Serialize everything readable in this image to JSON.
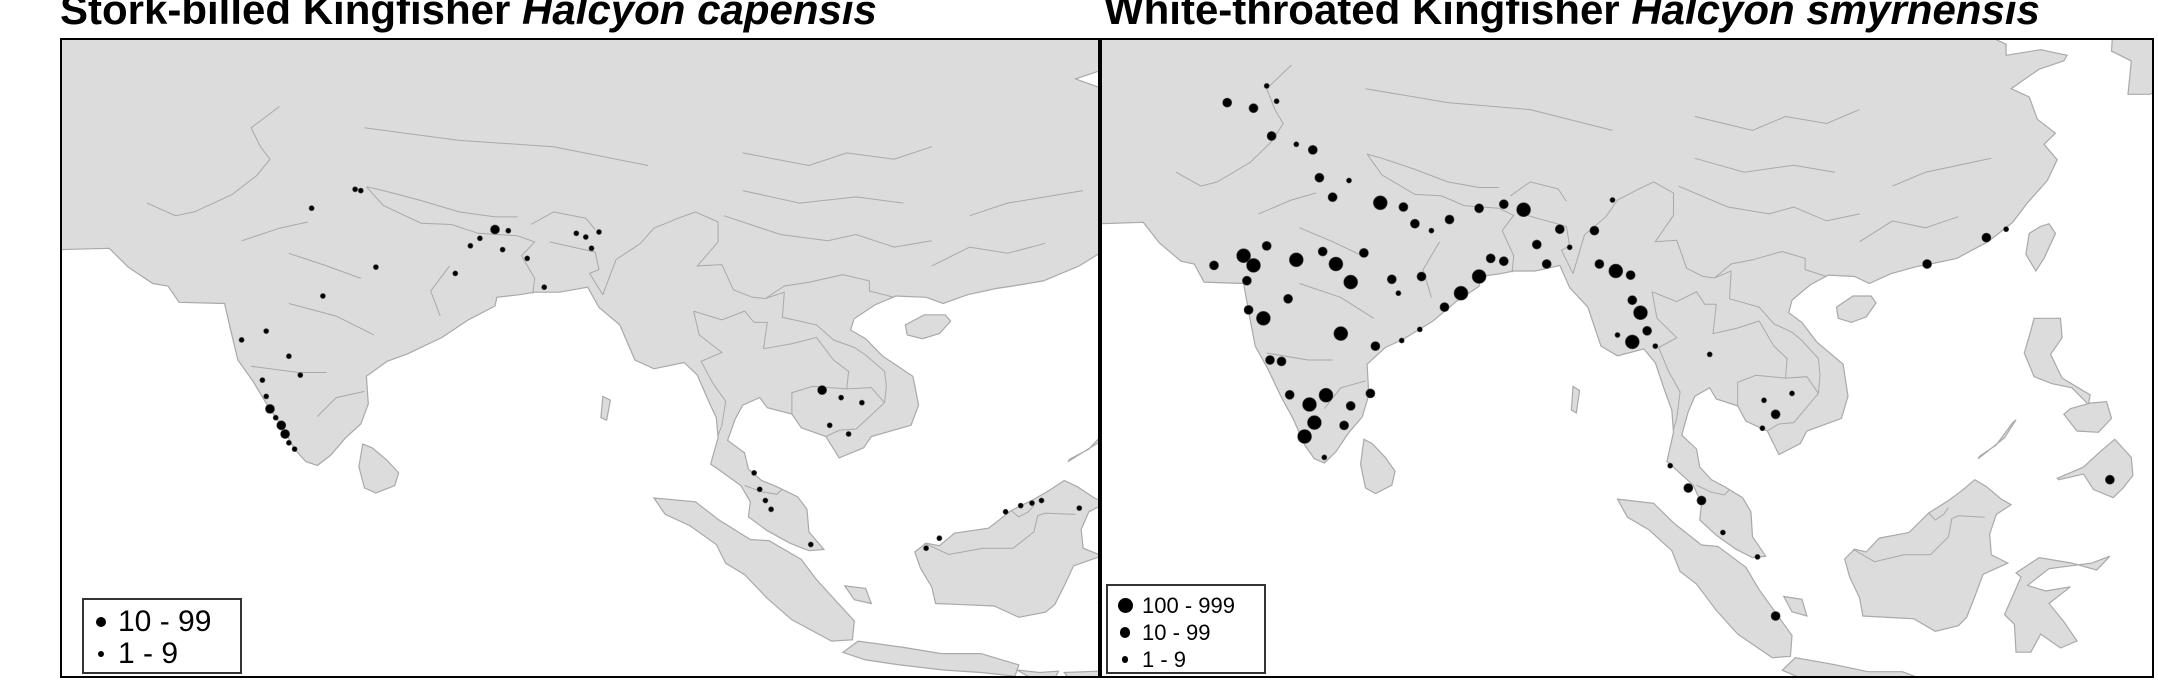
{
  "titles": {
    "left_common": "Stork-billed Kingfisher",
    "left_scientific": "Halcyon capensis",
    "right_common": "White-throated Kingfisher",
    "right_scientific": "Halcyon smyrnensis"
  },
  "colors": {
    "land": "#dcdcdc",
    "sea": "#ffffff",
    "border": "#a9a9a9",
    "dot": "#000000"
  },
  "maps": {
    "left": {
      "name": "stork-billed-kingfisher-map",
      "legend": [
        {
          "label": "10 - 99",
          "class": "medium"
        },
        {
          "label": "1 - 9",
          "class": "small"
        }
      ],
      "records": [
        {
          "lon": 77.2,
          "lat": 28.6,
          "class": "small"
        },
        {
          "lon": 80.6,
          "lat": 23.9,
          "class": "small"
        },
        {
          "lon": 79.5,
          "lat": 30.1,
          "class": "small"
        },
        {
          "lon": 79.8,
          "lat": 30.0,
          "class": "small"
        },
        {
          "lon": 73.5,
          "lat": 18.1,
          "class": "small"
        },
        {
          "lon": 74.6,
          "lat": 14.9,
          "class": "small"
        },
        {
          "lon": 74.8,
          "lat": 13.6,
          "class": "small"
        },
        {
          "lon": 75.0,
          "lat": 12.6,
          "class": "medium"
        },
        {
          "lon": 75.3,
          "lat": 11.9,
          "class": "small"
        },
        {
          "lon": 75.6,
          "lat": 11.3,
          "class": "medium"
        },
        {
          "lon": 75.8,
          "lat": 10.6,
          "class": "medium"
        },
        {
          "lon": 76.0,
          "lat": 9.9,
          "class": "small"
        },
        {
          "lon": 76.3,
          "lat": 9.4,
          "class": "small"
        },
        {
          "lon": 76.0,
          "lat": 16.8,
          "class": "small"
        },
        {
          "lon": 76.6,
          "lat": 15.3,
          "class": "small"
        },
        {
          "lon": 74.8,
          "lat": 18.8,
          "class": "small"
        },
        {
          "lon": 77.8,
          "lat": 21.6,
          "class": "small"
        },
        {
          "lon": 86.9,
          "lat": 26.9,
          "class": "medium"
        },
        {
          "lon": 86.1,
          "lat": 26.2,
          "class": "small"
        },
        {
          "lon": 87.6,
          "lat": 26.8,
          "class": "small"
        },
        {
          "lon": 85.6,
          "lat": 25.6,
          "class": "small"
        },
        {
          "lon": 87.3,
          "lat": 25.3,
          "class": "small"
        },
        {
          "lon": 88.6,
          "lat": 24.6,
          "class": "small"
        },
        {
          "lon": 84.8,
          "lat": 23.4,
          "class": "small"
        },
        {
          "lon": 91.2,
          "lat": 26.6,
          "class": "small"
        },
        {
          "lon": 91.7,
          "lat": 26.3,
          "class": "small"
        },
        {
          "lon": 92.4,
          "lat": 26.7,
          "class": "small"
        },
        {
          "lon": 92.0,
          "lat": 25.4,
          "class": "small"
        },
        {
          "lon": 89.5,
          "lat": 22.3,
          "class": "small"
        },
        {
          "lon": 104.2,
          "lat": 14.1,
          "class": "medium"
        },
        {
          "lon": 105.2,
          "lat": 13.5,
          "class": "small"
        },
        {
          "lon": 106.3,
          "lat": 13.1,
          "class": "small"
        },
        {
          "lon": 104.6,
          "lat": 11.3,
          "class": "small"
        },
        {
          "lon": 105.6,
          "lat": 10.6,
          "class": "small"
        },
        {
          "lon": 100.6,
          "lat": 7.5,
          "class": "small"
        },
        {
          "lon": 100.9,
          "lat": 6.2,
          "class": "small"
        },
        {
          "lon": 101.2,
          "lat": 5.3,
          "class": "small"
        },
        {
          "lon": 101.5,
          "lat": 4.6,
          "class": "small"
        },
        {
          "lon": 103.6,
          "lat": 1.8,
          "class": "small"
        },
        {
          "lon": 109.7,
          "lat": 1.5,
          "class": "small"
        },
        {
          "lon": 110.4,
          "lat": 2.3,
          "class": "small"
        },
        {
          "lon": 113.9,
          "lat": 4.4,
          "class": "small"
        },
        {
          "lon": 114.7,
          "lat": 4.9,
          "class": "small"
        },
        {
          "lon": 115.3,
          "lat": 5.1,
          "class": "small"
        },
        {
          "lon": 115.8,
          "lat": 5.3,
          "class": "small"
        },
        {
          "lon": 117.8,
          "lat": 4.7,
          "class": "small"
        }
      ]
    },
    "right": {
      "name": "white-throated-kingfisher-map",
      "legend": [
        {
          "label": "100 - 999",
          "class": "large"
        },
        {
          "label": "10 - 99",
          "class": "medium"
        },
        {
          "label": "1 - 9",
          "class": "small"
        }
      ],
      "records": [
        {
          "lon": 71.6,
          "lat": 34.0,
          "class": "medium"
        },
        {
          "lon": 74.0,
          "lat": 35.2,
          "class": "small"
        },
        {
          "lon": 74.6,
          "lat": 34.1,
          "class": "small"
        },
        {
          "lon": 73.2,
          "lat": 33.6,
          "class": "medium"
        },
        {
          "lon": 74.3,
          "lat": 31.6,
          "class": "medium"
        },
        {
          "lon": 75.8,
          "lat": 31.0,
          "class": "small"
        },
        {
          "lon": 76.8,
          "lat": 30.6,
          "class": "medium"
        },
        {
          "lon": 77.2,
          "lat": 28.6,
          "class": "medium"
        },
        {
          "lon": 78.0,
          "lat": 27.2,
          "class": "medium"
        },
        {
          "lon": 79.0,
          "lat": 28.4,
          "class": "small"
        },
        {
          "lon": 80.9,
          "lat": 26.8,
          "class": "large"
        },
        {
          "lon": 82.3,
          "lat": 26.5,
          "class": "medium"
        },
        {
          "lon": 83.0,
          "lat": 25.3,
          "class": "medium"
        },
        {
          "lon": 84.0,
          "lat": 24.8,
          "class": "small"
        },
        {
          "lon": 85.1,
          "lat": 25.6,
          "class": "medium"
        },
        {
          "lon": 86.9,
          "lat": 26.4,
          "class": "medium"
        },
        {
          "lon": 88.4,
          "lat": 26.7,
          "class": "medium"
        },
        {
          "lon": 89.6,
          "lat": 26.3,
          "class": "large"
        },
        {
          "lon": 90.4,
          "lat": 23.8,
          "class": "medium"
        },
        {
          "lon": 91.8,
          "lat": 24.9,
          "class": "medium"
        },
        {
          "lon": 91.0,
          "lat": 22.4,
          "class": "medium"
        },
        {
          "lon": 92.4,
          "lat": 23.6,
          "class": "small"
        },
        {
          "lon": 93.9,
          "lat": 24.8,
          "class": "medium"
        },
        {
          "lon": 95.0,
          "lat": 27.0,
          "class": "small"
        },
        {
          "lon": 94.2,
          "lat": 22.4,
          "class": "medium"
        },
        {
          "lon": 95.2,
          "lat": 21.9,
          "class": "large"
        },
        {
          "lon": 96.1,
          "lat": 21.6,
          "class": "medium"
        },
        {
          "lon": 96.2,
          "lat": 19.8,
          "class": "medium"
        },
        {
          "lon": 96.7,
          "lat": 18.9,
          "class": "large"
        },
        {
          "lon": 95.3,
          "lat": 17.3,
          "class": "small"
        },
        {
          "lon": 96.2,
          "lat": 16.8,
          "class": "large"
        },
        {
          "lon": 97.1,
          "lat": 17.6,
          "class": "medium"
        },
        {
          "lon": 97.6,
          "lat": 16.5,
          "class": "small"
        },
        {
          "lon": 72.6,
          "lat": 23.0,
          "class": "large"
        },
        {
          "lon": 73.2,
          "lat": 22.3,
          "class": "large"
        },
        {
          "lon": 74.0,
          "lat": 23.7,
          "class": "medium"
        },
        {
          "lon": 70.8,
          "lat": 22.3,
          "class": "medium"
        },
        {
          "lon": 72.8,
          "lat": 21.2,
          "class": "medium"
        },
        {
          "lon": 72.9,
          "lat": 19.1,
          "class": "medium"
        },
        {
          "lon": 73.8,
          "lat": 18.5,
          "class": "large"
        },
        {
          "lon": 75.3,
          "lat": 19.9,
          "class": "medium"
        },
        {
          "lon": 75.8,
          "lat": 22.7,
          "class": "large"
        },
        {
          "lon": 77.4,
          "lat": 23.3,
          "class": "medium"
        },
        {
          "lon": 78.2,
          "lat": 22.4,
          "class": "large"
        },
        {
          "lon": 79.1,
          "lat": 21.1,
          "class": "large"
        },
        {
          "lon": 79.9,
          "lat": 23.2,
          "class": "medium"
        },
        {
          "lon": 81.6,
          "lat": 21.3,
          "class": "medium"
        },
        {
          "lon": 82.0,
          "lat": 20.3,
          "class": "small"
        },
        {
          "lon": 83.4,
          "lat": 21.5,
          "class": "medium"
        },
        {
          "lon": 84.8,
          "lat": 19.3,
          "class": "medium"
        },
        {
          "lon": 85.8,
          "lat": 20.3,
          "class": "large"
        },
        {
          "lon": 86.9,
          "lat": 21.5,
          "class": "large"
        },
        {
          "lon": 87.6,
          "lat": 22.8,
          "class": "medium"
        },
        {
          "lon": 88.4,
          "lat": 22.6,
          "class": "medium"
        },
        {
          "lon": 83.3,
          "lat": 17.7,
          "class": "small"
        },
        {
          "lon": 82.2,
          "lat": 16.9,
          "class": "small"
        },
        {
          "lon": 80.6,
          "lat": 16.5,
          "class": "medium"
        },
        {
          "lon": 78.5,
          "lat": 17.4,
          "class": "large"
        },
        {
          "lon": 77.6,
          "lat": 12.97,
          "class": "large"
        },
        {
          "lon": 76.6,
          "lat": 12.3,
          "class": "large"
        },
        {
          "lon": 75.4,
          "lat": 13.0,
          "class": "medium"
        },
        {
          "lon": 74.9,
          "lat": 15.4,
          "class": "medium"
        },
        {
          "lon": 74.2,
          "lat": 15.5,
          "class": "medium"
        },
        {
          "lon": 76.3,
          "lat": 10.0,
          "class": "large"
        },
        {
          "lon": 76.9,
          "lat": 11.0,
          "class": "large"
        },
        {
          "lon": 78.7,
          "lat": 10.8,
          "class": "medium"
        },
        {
          "lon": 77.5,
          "lat": 8.5,
          "class": "small"
        },
        {
          "lon": 80.3,
          "lat": 13.1,
          "class": "medium"
        },
        {
          "lon": 79.1,
          "lat": 12.2,
          "class": "medium"
        },
        {
          "lon": 98.5,
          "lat": 7.9,
          "class": "small"
        },
        {
          "lon": 99.6,
          "lat": 6.3,
          "class": "medium"
        },
        {
          "lon": 100.4,
          "lat": 5.4,
          "class": "medium"
        },
        {
          "lon": 101.7,
          "lat": 3.1,
          "class": "small"
        },
        {
          "lon": 103.8,
          "lat": 1.35,
          "class": "small"
        },
        {
          "lon": 104.9,
          "lat": -2.9,
          "class": "medium"
        },
        {
          "lon": 104.2,
          "lat": 12.6,
          "class": "small"
        },
        {
          "lon": 104.9,
          "lat": 11.6,
          "class": "medium"
        },
        {
          "lon": 105.9,
          "lat": 13.1,
          "class": "small"
        },
        {
          "lon": 104.1,
          "lat": 10.6,
          "class": "small"
        },
        {
          "lon": 100.9,
          "lat": 15.9,
          "class": "small"
        },
        {
          "lon": 114.1,
          "lat": 22.4,
          "class": "medium"
        },
        {
          "lon": 117.7,
          "lat": 24.3,
          "class": "medium"
        },
        {
          "lon": 118.9,
          "lat": 24.9,
          "class": "small"
        },
        {
          "lon": 125.2,
          "lat": 6.9,
          "class": "medium"
        }
      ]
    }
  }
}
